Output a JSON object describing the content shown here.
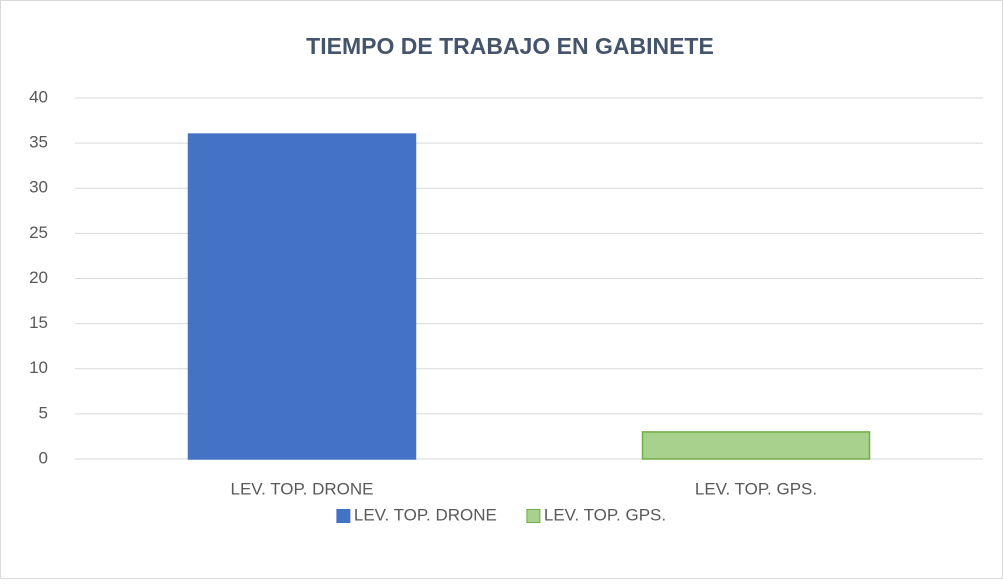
{
  "chart_data": {
    "type": "bar",
    "title": "TIEMPO DE TRABAJO EN GABINETE",
    "categories": [
      "LEV. TOP. DRONE",
      "LEV. TOP. GPS."
    ],
    "series": [
      {
        "name": "LEV. TOP. DRONE",
        "color": "#4472c4",
        "edgecolor": "#4472c4",
        "values": [
          36,
          null
        ]
      },
      {
        "name": "LEV. TOP. GPS.",
        "color": "#a9d18e",
        "edgecolor": "#70ad47",
        "values": [
          null,
          3
        ]
      }
    ],
    "ylim": [
      0,
      40
    ],
    "yticks": [
      0,
      5,
      10,
      15,
      20,
      25,
      30,
      35,
      40
    ],
    "grid": true,
    "legend": "bottom"
  }
}
